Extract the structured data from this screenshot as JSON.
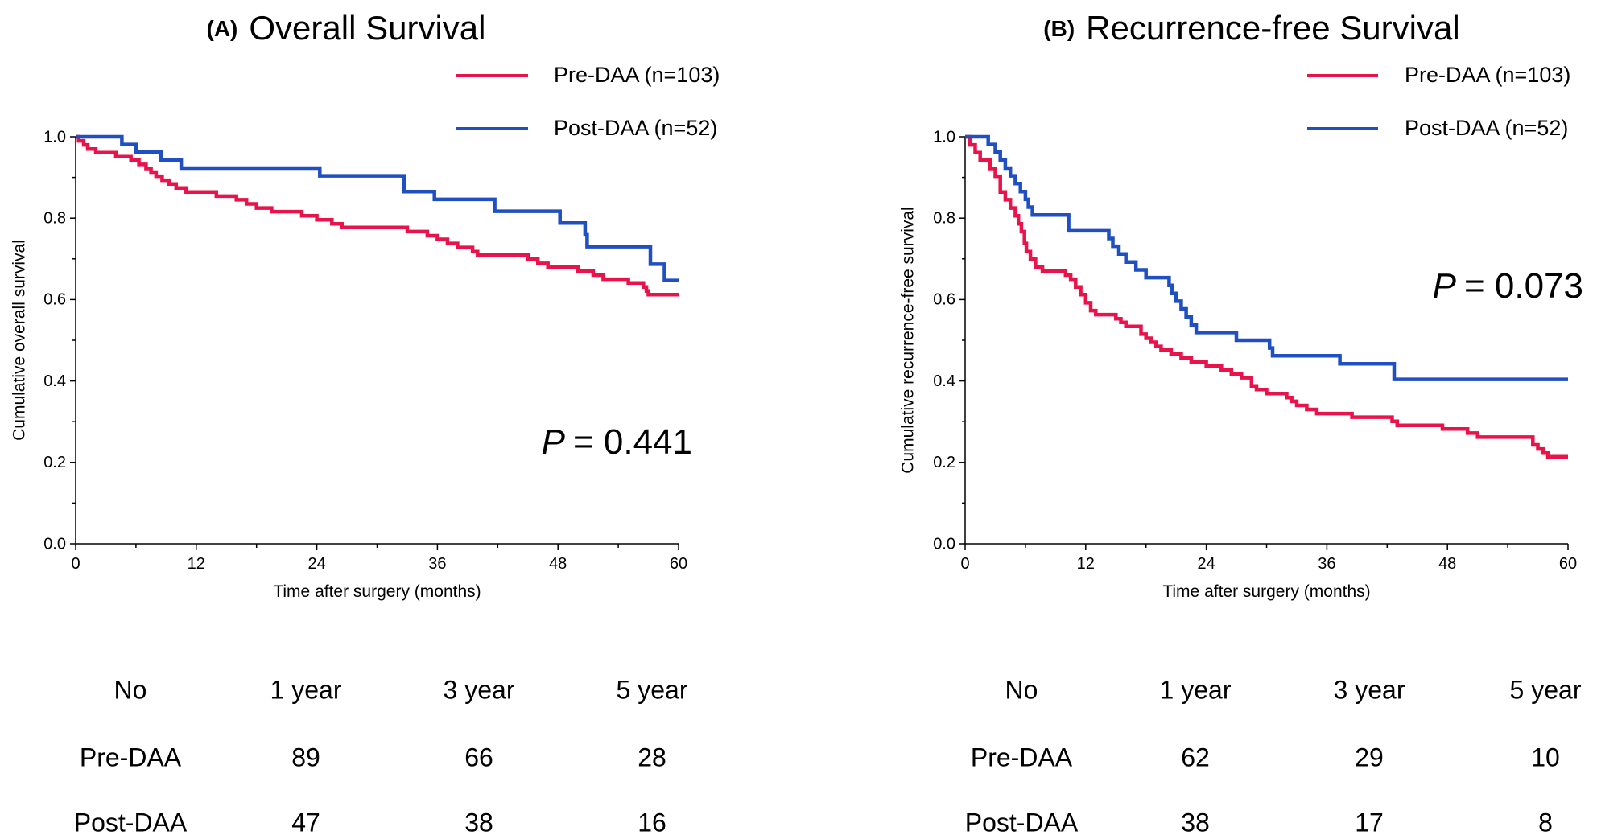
{
  "chart_data": [
    {
      "type": "line",
      "panel_letter": "(A)",
      "title": "Overall Survival",
      "xlabel": "Time after surgery (months)",
      "ylabel": "Cumulative overall survival",
      "xlim": [
        0,
        60
      ],
      "ylim": [
        0,
        1.0
      ],
      "x_ticks": [
        0,
        12,
        24,
        36,
        48,
        60
      ],
      "x_tick_labels": [
        "0",
        "12",
        "24",
        "36",
        "48",
        "60"
      ],
      "y_ticks": [
        0,
        0.2,
        0.4,
        0.6,
        0.8,
        1.0
      ],
      "y_tick_labels": [
        "0.0",
        "0.2",
        "0.4",
        "0.6",
        "0.8",
        "1.0"
      ],
      "p_label": "P",
      "p_value": "= 0.441",
      "legend_position": "top-right",
      "series": [
        {
          "name": "Pre-DAA (n=103)",
          "color": "#e8134b",
          "steps": [
            [
              0,
              1.0
            ],
            [
              0.3,
              0.99
            ],
            [
              0.8,
              0.98
            ],
            [
              1.2,
              0.97
            ],
            [
              2,
              0.961
            ],
            [
              4,
              0.951
            ],
            [
              5.5,
              0.942
            ],
            [
              6.3,
              0.932
            ],
            [
              7,
              0.922
            ],
            [
              7.5,
              0.913
            ],
            [
              8,
              0.903
            ],
            [
              8.6,
              0.893
            ],
            [
              9.3,
              0.884
            ],
            [
              10,
              0.874
            ],
            [
              11,
              0.864
            ],
            [
              13,
              0.864
            ],
            [
              14,
              0.854
            ],
            [
              16,
              0.845
            ],
            [
              17,
              0.835
            ],
            [
              18,
              0.825
            ],
            [
              19.5,
              0.816
            ],
            [
              22.5,
              0.806
            ],
            [
              24,
              0.796
            ],
            [
              25.5,
              0.786
            ],
            [
              26.5,
              0.777
            ],
            [
              32,
              0.777
            ],
            [
              33,
              0.767
            ],
            [
              35,
              0.757
            ],
            [
              36,
              0.748
            ],
            [
              37,
              0.738
            ],
            [
              38,
              0.728
            ],
            [
              39.5,
              0.718
            ],
            [
              40,
              0.709
            ],
            [
              45,
              0.699
            ],
            [
              46,
              0.689
            ],
            [
              47,
              0.68
            ],
            [
              50,
              0.67
            ],
            [
              51.5,
              0.66
            ],
            [
              52.5,
              0.65
            ],
            [
              55,
              0.641
            ],
            [
              56.5,
              0.631
            ],
            [
              56.8,
              0.621
            ],
            [
              57,
              0.612
            ],
            [
              60,
              0.612
            ]
          ]
        },
        {
          "name": "Post-DAA (n=52)",
          "color": "#1f4fc0",
          "steps": [
            [
              0,
              1.0
            ],
            [
              4.5,
              1.0
            ],
            [
              4.6,
              0.981
            ],
            [
              6,
              0.962
            ],
            [
              8.5,
              0.942
            ],
            [
              10.5,
              0.923
            ],
            [
              24,
              0.923
            ],
            [
              24.3,
              0.904
            ],
            [
              32.5,
              0.904
            ],
            [
              32.7,
              0.865
            ],
            [
              35.5,
              0.865
            ],
            [
              35.7,
              0.846
            ],
            [
              41.5,
              0.846
            ],
            [
              41.7,
              0.817
            ],
            [
              48,
              0.817
            ],
            [
              48.2,
              0.788
            ],
            [
              50.5,
              0.788
            ],
            [
              50.7,
              0.759
            ],
            [
              50.9,
              0.73
            ],
            [
              57,
              0.73
            ],
            [
              57.2,
              0.687
            ],
            [
              58.5,
              0.687
            ],
            [
              58.6,
              0.647
            ],
            [
              60,
              0.647
            ]
          ]
        }
      ],
      "table": {
        "header": [
          "No",
          "1 year",
          "3 year",
          "5 year"
        ],
        "rows": [
          {
            "label": "Pre-DAA",
            "values": [
              "89",
              "66",
              "28"
            ]
          },
          {
            "label": "Post-DAA",
            "values": [
              "47",
              "38",
              "16"
            ]
          }
        ]
      }
    },
    {
      "type": "line",
      "panel_letter": "(B)",
      "title": "Recurrence-free Survival",
      "xlabel": "Time after surgery (months)",
      "ylabel": "Cumulative recurrence-free survival",
      "xlim": [
        0,
        60
      ],
      "ylim": [
        0,
        1.0
      ],
      "x_ticks": [
        0,
        12,
        24,
        36,
        48,
        60
      ],
      "x_tick_labels": [
        "0",
        "12",
        "24",
        "36",
        "48",
        "60"
      ],
      "y_ticks": [
        0,
        0.2,
        0.4,
        0.6,
        0.8,
        1.0
      ],
      "y_tick_labels": [
        "0.0",
        "0.2",
        "0.4",
        "0.6",
        "0.8",
        "1.0"
      ],
      "p_label": "P",
      "p_value": "= 0.073",
      "legend_position": "top-right",
      "series": [
        {
          "name": "Pre-DAA (n=103)",
          "color": "#e8134b",
          "steps": [
            [
              0,
              1.0
            ],
            [
              0.5,
              0.98
            ],
            [
              1,
              0.961
            ],
            [
              1.5,
              0.942
            ],
            [
              2.5,
              0.922
            ],
            [
              3,
              0.903
            ],
            [
              3.5,
              0.864
            ],
            [
              4,
              0.845
            ],
            [
              4.5,
              0.825
            ],
            [
              5,
              0.806
            ],
            [
              5.3,
              0.786
            ],
            [
              5.6,
              0.767
            ],
            [
              5.9,
              0.738
            ],
            [
              6.1,
              0.718
            ],
            [
              6.5,
              0.699
            ],
            [
              7,
              0.68
            ],
            [
              7.7,
              0.67
            ],
            [
              10,
              0.66
            ],
            [
              10.5,
              0.65
            ],
            [
              11,
              0.631
            ],
            [
              11.5,
              0.612
            ],
            [
              12,
              0.592
            ],
            [
              12.5,
              0.573
            ],
            [
              13,
              0.563
            ],
            [
              15,
              0.553
            ],
            [
              15.5,
              0.544
            ],
            [
              16,
              0.534
            ],
            [
              17.5,
              0.515
            ],
            [
              18,
              0.505
            ],
            [
              18.5,
              0.495
            ],
            [
              19,
              0.485
            ],
            [
              19.5,
              0.476
            ],
            [
              20.5,
              0.466
            ],
            [
              21.5,
              0.456
            ],
            [
              22.5,
              0.447
            ],
            [
              24,
              0.437
            ],
            [
              25.5,
              0.427
            ],
            [
              26.5,
              0.417
            ],
            [
              27.5,
              0.408
            ],
            [
              28.5,
              0.388
            ],
            [
              29,
              0.379
            ],
            [
              30,
              0.369
            ],
            [
              32,
              0.359
            ],
            [
              32.5,
              0.35
            ],
            [
              33,
              0.34
            ],
            [
              34,
              0.33
            ],
            [
              35,
              0.32
            ],
            [
              38,
              0.32
            ],
            [
              38.5,
              0.311
            ],
            [
              42,
              0.311
            ],
            [
              42.5,
              0.301
            ],
            [
              43,
              0.291
            ],
            [
              47,
              0.291
            ],
            [
              47.5,
              0.282
            ],
            [
              48,
              0.282
            ],
            [
              50,
              0.272
            ],
            [
              51,
              0.262
            ],
            [
              52,
              0.262
            ],
            [
              53,
              0.262
            ],
            [
              56,
              0.262
            ],
            [
              56.5,
              0.243
            ],
            [
              57,
              0.233
            ],
            [
              57.5,
              0.223
            ],
            [
              58,
              0.214
            ],
            [
              60,
              0.214
            ]
          ]
        },
        {
          "name": "Post-DAA (n=52)",
          "color": "#1f4fc0",
          "steps": [
            [
              0,
              1.0
            ],
            [
              2,
              1.0
            ],
            [
              2.3,
              0.981
            ],
            [
              3,
              0.962
            ],
            [
              3.5,
              0.942
            ],
            [
              4,
              0.923
            ],
            [
              4.5,
              0.904
            ],
            [
              5,
              0.885
            ],
            [
              5.5,
              0.865
            ],
            [
              6,
              0.846
            ],
            [
              6.3,
              0.827
            ],
            [
              6.7,
              0.808
            ],
            [
              10,
              0.808
            ],
            [
              10.3,
              0.769
            ],
            [
              14,
              0.769
            ],
            [
              14.3,
              0.75
            ],
            [
              14.7,
              0.731
            ],
            [
              15.3,
              0.712
            ],
            [
              16,
              0.692
            ],
            [
              17,
              0.673
            ],
            [
              18,
              0.654
            ],
            [
              20,
              0.654
            ],
            [
              20.3,
              0.635
            ],
            [
              20.6,
              0.615
            ],
            [
              21,
              0.596
            ],
            [
              21.5,
              0.577
            ],
            [
              22,
              0.558
            ],
            [
              22.5,
              0.538
            ],
            [
              23,
              0.519
            ],
            [
              26.5,
              0.519
            ],
            [
              27,
              0.5
            ],
            [
              30,
              0.5
            ],
            [
              30.3,
              0.481
            ],
            [
              30.6,
              0.462
            ],
            [
              37,
              0.462
            ],
            [
              37.3,
              0.442
            ],
            [
              42.5,
              0.442
            ],
            [
              42.7,
              0.404
            ],
            [
              60,
              0.404
            ]
          ]
        }
      ],
      "table": {
        "header": [
          "No",
          "1 year",
          "3 year",
          "5 year"
        ],
        "rows": [
          {
            "label": "Pre-DAA",
            "values": [
              "62",
              "29",
              "10"
            ]
          },
          {
            "label": "Post-DAA",
            "values": [
              "38",
              "17",
              "8"
            ]
          }
        ]
      }
    }
  ]
}
